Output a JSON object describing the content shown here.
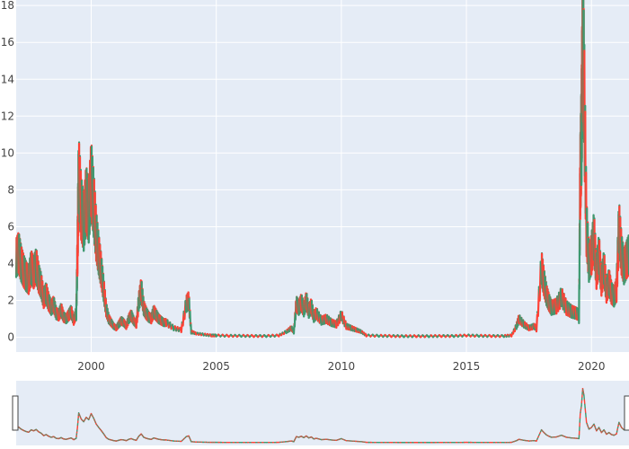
{
  "chart_data": {
    "type": "candlestick",
    "title": "",
    "xlabel": "",
    "ylabel": "",
    "xlim": [
      1997.0,
      2021.5
    ],
    "ylim": [
      -0.8,
      18.3
    ],
    "x_ticks": [
      2000,
      2005,
      2010,
      2015,
      2020
    ],
    "x_tick_labels": [
      "2000",
      "2005",
      "2010",
      "2015",
      "2020"
    ],
    "y_ticks": [
      0,
      2,
      4,
      6,
      8,
      10,
      12,
      14,
      16,
      18
    ],
    "y_tick_labels": [
      "0",
      "2",
      "4",
      "6",
      "8",
      "10",
      "12",
      "14",
      "16",
      "18"
    ],
    "rangeslider": true,
    "colors": {
      "increasing": "#3d9970",
      "decreasing": "#ff4136",
      "plot_bg": "#e5ecf6",
      "grid": "#ffffff"
    },
    "series": [
      {
        "x": [
          1997.0,
          1997.1,
          1997.2,
          1997.3,
          1997.4,
          1997.5,
          1997.6,
          1997.7,
          1997.8,
          1997.9,
          1998.0,
          1998.1,
          1998.2,
          1998.3,
          1998.4,
          1998.5,
          1998.6,
          1998.7,
          1998.8,
          1998.9,
          1999.0,
          1999.1,
          1999.2,
          1999.3,
          1999.4,
          1999.45,
          1999.5,
          1999.6,
          1999.7,
          1999.8,
          1999.9,
          2000.0,
          2000.1,
          2000.2,
          2000.3,
          2000.4,
          2000.5,
          2000.6,
          2000.7,
          2000.8,
          2000.9,
          2001.0,
          2001.1,
          2001.2,
          2001.3,
          2001.4,
          2001.5,
          2001.6,
          2001.7,
          2001.8,
          2001.9,
          2002.0,
          2002.1,
          2002.2,
          2002.3,
          2002.4,
          2002.5,
          2002.6,
          2002.7,
          2002.8,
          2002.9,
          2003.0,
          2003.3,
          2003.6,
          2003.8,
          2003.9,
          2004.0,
          2004.2,
          2004.5,
          2004.8,
          2005.0,
          2005.5,
          2006.0,
          2006.5,
          2007.0,
          2007.5,
          2007.8,
          2008.0,
          2008.1,
          2008.2,
          2008.3,
          2008.4,
          2008.5,
          2008.6,
          2008.7,
          2008.8,
          2008.9,
          2009.0,
          2009.2,
          2009.4,
          2009.6,
          2009.8,
          2010.0,
          2010.2,
          2010.4,
          2010.6,
          2010.8,
          2011.0,
          2011.5,
          2012.0,
          2012.5,
          2013.0,
          2013.5,
          2014.0,
          2014.5,
          2015.0,
          2015.5,
          2016.0,
          2016.5,
          2016.8,
          2017.0,
          2017.1,
          2017.3,
          2017.5,
          2017.7,
          2017.8,
          2018.0,
          2018.1,
          2018.2,
          2018.3,
          2018.4,
          2018.6,
          2018.8,
          2019.0,
          2019.2,
          2019.4,
          2019.5,
          2019.55,
          2019.6,
          2019.65,
          2019.7,
          2019.8,
          2019.9,
          2020.0,
          2020.1,
          2020.2,
          2020.3,
          2020.4,
          2020.5,
          2020.6,
          2020.7,
          2020.8,
          2020.9,
          2021.0,
          2021.1,
          2021.2,
          2021.3,
          2021.4,
          2021.5
        ],
        "y": [
          4.3,
          4.6,
          4.0,
          3.6,
          3.3,
          3.1,
          3.8,
          3.5,
          3.9,
          3.2,
          2.8,
          2.1,
          2.4,
          1.9,
          1.6,
          1.8,
          1.3,
          1.2,
          1.5,
          1.1,
          1.0,
          1.2,
          1.4,
          0.9,
          1.3,
          4.5,
          8.8,
          7.0,
          6.2,
          7.5,
          6.8,
          8.6,
          7.2,
          5.5,
          4.5,
          3.6,
          2.6,
          1.5,
          1.0,
          0.8,
          0.6,
          0.5,
          0.7,
          0.9,
          0.8,
          0.6,
          1.0,
          1.2,
          0.9,
          0.7,
          1.9,
          2.6,
          1.6,
          1.3,
          1.1,
          1.0,
          1.4,
          1.2,
          1.0,
          0.9,
          0.8,
          0.8,
          0.5,
          0.4,
          1.8,
          2.0,
          0.3,
          0.2,
          0.15,
          0.1,
          0.1,
          0.08,
          0.08,
          0.07,
          0.07,
          0.1,
          0.3,
          0.5,
          0.3,
          1.8,
          1.6,
          1.9,
          1.5,
          2.0,
          1.4,
          1.7,
          1.1,
          1.3,
          0.9,
          1.0,
          0.8,
          0.7,
          1.2,
          0.6,
          0.5,
          0.4,
          0.3,
          0.1,
          0.08,
          0.07,
          0.06,
          0.06,
          0.06,
          0.07,
          0.07,
          0.1,
          0.08,
          0.07,
          0.07,
          0.1,
          0.6,
          1.0,
          0.7,
          0.5,
          0.6,
          0.5,
          3.8,
          3.0,
          2.3,
          1.9,
          1.6,
          1.7,
          2.2,
          1.6,
          1.4,
          1.3,
          1.2,
          8.5,
          11.0,
          16.0,
          14.0,
          6.0,
          4.0,
          4.5,
          5.5,
          3.5,
          4.5,
          3.0,
          3.8,
          2.5,
          3.0,
          2.4,
          2.2,
          2.6,
          6.0,
          4.5,
          3.8,
          4.2,
          4.5
        ]
      }
    ]
  }
}
